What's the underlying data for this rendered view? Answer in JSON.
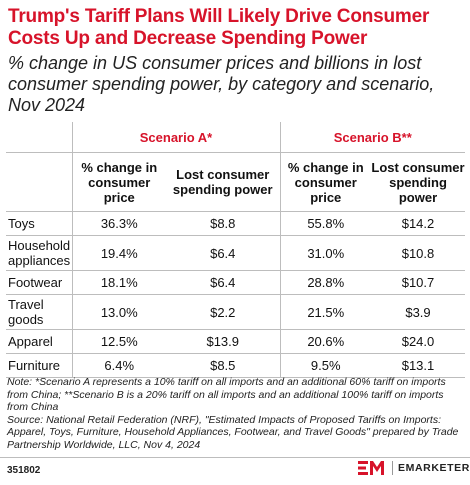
{
  "title": "Trump's Tariff Plans Will Likely Drive Consumer Costs Up and Decrease Spending Power",
  "subtitle": "% change in US consumer prices and billions in lost consumer spending power, by category and scenario, Nov 2024",
  "colors": {
    "accent": "#d7132a",
    "rule": "#bdbdbd"
  },
  "chart_data": {
    "type": "table",
    "title": "Trump's Tariff Plans Will Likely Drive Consumer Costs Up and Decrease Spending Power",
    "subtitle": "% change in US consumer prices and billions in lost consumer spending power, by category and scenario, Nov 2024",
    "scenarios": [
      "Scenario A*",
      "Scenario B**"
    ],
    "columns": [
      "% change in consumer price",
      "Lost consumer spending power",
      "% change in consumer price",
      "Lost consumer spending power"
    ],
    "rows": [
      {
        "category": "Toys",
        "values": [
          "36.3%",
          "$8.8",
          "55.8%",
          "$14.2"
        ]
      },
      {
        "category": "Household appliances",
        "values": [
          "19.4%",
          "$6.4",
          "31.0%",
          "$10.8"
        ]
      },
      {
        "category": "Footwear",
        "values": [
          "18.1%",
          "$6.4",
          "28.8%",
          "$10.7"
        ]
      },
      {
        "category": "Travel goods",
        "values": [
          "13.0%",
          "$2.2",
          "21.5%",
          "$3.9"
        ]
      },
      {
        "category": "Apparel",
        "values": [
          "12.5%",
          "$13.9",
          "20.6%",
          "$24.0"
        ]
      },
      {
        "category": "Furniture",
        "values": [
          "6.4%",
          "$8.5",
          "9.5%",
          "$13.1"
        ]
      }
    ]
  },
  "note": "Note: *Scenario A represents a 10% tariff on all imports and an additional 60% tariff on imports from China; **Scenario B is a 20% tariff on all imports and an additional 100% tariff on imports from China",
  "source": "Source: National Retail Federation (NRF), \"Estimated Impacts of Proposed Tariffs on Imports: Apparel, Toys, Furniture, Household Appliances, Footwear, and Travel Goods\" prepared by Trade Partnership Worldwide, LLC, Nov 4, 2024",
  "footer": {
    "chart_id": "351802",
    "brand": "EMARKETER"
  }
}
